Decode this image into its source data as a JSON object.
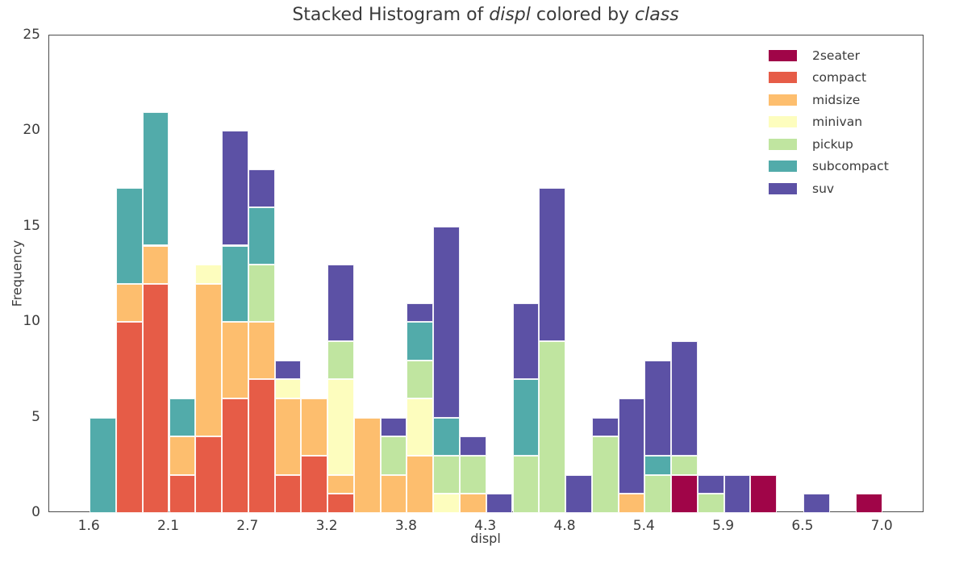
{
  "title": {
    "prefix": "Stacked Histogram of ",
    "var_x": "displ",
    "infix": " colored by ",
    "var_hue": "class"
  },
  "axes": {
    "xlabel": "displ",
    "ylabel": "Frequency",
    "x_tick_labels": [
      "1.6",
      "2.1",
      "2.7",
      "3.2",
      "3.8",
      "4.3",
      "4.8",
      "5.4",
      "5.9",
      "6.5",
      "7.0"
    ],
    "y_tick_labels": [
      "0",
      "5",
      "10",
      "15",
      "20",
      "25"
    ]
  },
  "legend": {
    "entries": [
      {
        "label": "2seater",
        "color": "#a00548"
      },
      {
        "label": "compact",
        "color": "#e65c47"
      },
      {
        "label": "midsize",
        "color": "#fdbe6e"
      },
      {
        "label": "minivan",
        "color": "#fdfdbe"
      },
      {
        "label": "pickup",
        "color": "#c0e5a0"
      },
      {
        "label": "subcompact",
        "color": "#52abaa"
      },
      {
        "label": "suv",
        "color": "#5c51a5"
      }
    ]
  },
  "chart_data": {
    "type": "bar",
    "subtype": "stacked-histogram",
    "title": "Stacked Histogram of displ colored by class",
    "xlabel": "displ",
    "ylabel": "Frequency",
    "bin_width": 0.18,
    "bin_edges": [
      1.6,
      1.78,
      1.96,
      2.14,
      2.32,
      2.5,
      2.68,
      2.86,
      3.04,
      3.22,
      3.4,
      3.58,
      3.76,
      3.94,
      4.12,
      4.3,
      4.48,
      4.66,
      4.84,
      5.02,
      5.2,
      5.38,
      5.56,
      5.74,
      5.92,
      6.1,
      6.28,
      6.46,
      6.64,
      6.82,
      7.0
    ],
    "x_tick_values": [
      1.6,
      2.14,
      2.68,
      3.22,
      3.76,
      4.3,
      4.84,
      5.38,
      5.92,
      6.46,
      7.0
    ],
    "x_tick_labels": [
      "1.6",
      "2.1",
      "2.7",
      "3.2",
      "3.8",
      "4.3",
      "4.8",
      "5.4",
      "5.9",
      "6.5",
      "7.0"
    ],
    "y_tick_values": [
      0,
      5,
      10,
      15,
      20,
      25
    ],
    "ylim": [
      0,
      25
    ],
    "xlim": [
      1.324,
      7.285
    ],
    "grid": false,
    "legend_position": "upper right",
    "series": [
      {
        "name": "2seater",
        "color": "#a00548",
        "values": [
          0,
          0,
          0,
          0,
          0,
          0,
          0,
          0,
          0,
          0,
          0,
          0,
          0,
          0,
          0,
          0,
          0,
          0,
          0,
          0,
          0,
          0,
          2,
          0,
          0,
          2,
          0,
          0,
          0,
          1
        ]
      },
      {
        "name": "compact",
        "color": "#e65c47",
        "values": [
          0,
          10,
          12,
          2,
          4,
          6,
          7,
          2,
          3,
          1,
          0,
          0,
          0,
          0,
          0,
          0,
          0,
          0,
          0,
          0,
          0,
          0,
          0,
          0,
          0,
          0,
          0,
          0,
          0,
          0
        ]
      },
      {
        "name": "midsize",
        "color": "#fdbe6e",
        "values": [
          0,
          2,
          2,
          2,
          8,
          4,
          3,
          4,
          3,
          1,
          5,
          2,
          3,
          0,
          1,
          0,
          0,
          0,
          0,
          0,
          1,
          0,
          0,
          0,
          0,
          0,
          0,
          0,
          0,
          0
        ]
      },
      {
        "name": "minivan",
        "color": "#fdfdbe",
        "values": [
          0,
          0,
          0,
          0,
          1,
          0,
          0,
          1,
          0,
          5,
          0,
          0,
          3,
          1,
          0,
          0,
          0,
          0,
          0,
          0,
          0,
          0,
          0,
          0,
          0,
          0,
          0,
          0,
          0,
          0
        ]
      },
      {
        "name": "pickup",
        "color": "#c0e5a0",
        "values": [
          0,
          0,
          0,
          0,
          0,
          0,
          3,
          0,
          0,
          2,
          0,
          2,
          2,
          2,
          2,
          0,
          3,
          9,
          0,
          4,
          0,
          2,
          1,
          1,
          0,
          0,
          0,
          0,
          0,
          0
        ]
      },
      {
        "name": "subcompact",
        "color": "#52abaa",
        "values": [
          5,
          5,
          7,
          2,
          0,
          4,
          3,
          0,
          0,
          0,
          0,
          0,
          2,
          2,
          0,
          0,
          4,
          0,
          0,
          0,
          0,
          1,
          0,
          0,
          0,
          0,
          0,
          0,
          0,
          0
        ]
      },
      {
        "name": "suv",
        "color": "#5c51a5",
        "values": [
          0,
          0,
          0,
          0,
          0,
          6,
          2,
          1,
          0,
          4,
          0,
          1,
          1,
          10,
          1,
          1,
          4,
          8,
          2,
          1,
          5,
          5,
          6,
          1,
          2,
          0,
          0,
          1,
          0,
          0
        ]
      }
    ],
    "bin_totals": [
      5,
      17,
      21,
      6,
      13,
      20,
      18,
      8,
      6,
      13,
      5,
      5,
      11,
      15,
      4,
      1,
      11,
      17,
      2,
      5,
      6,
      8,
      9,
      2,
      2,
      2,
      0,
      1,
      0,
      1
    ]
  }
}
